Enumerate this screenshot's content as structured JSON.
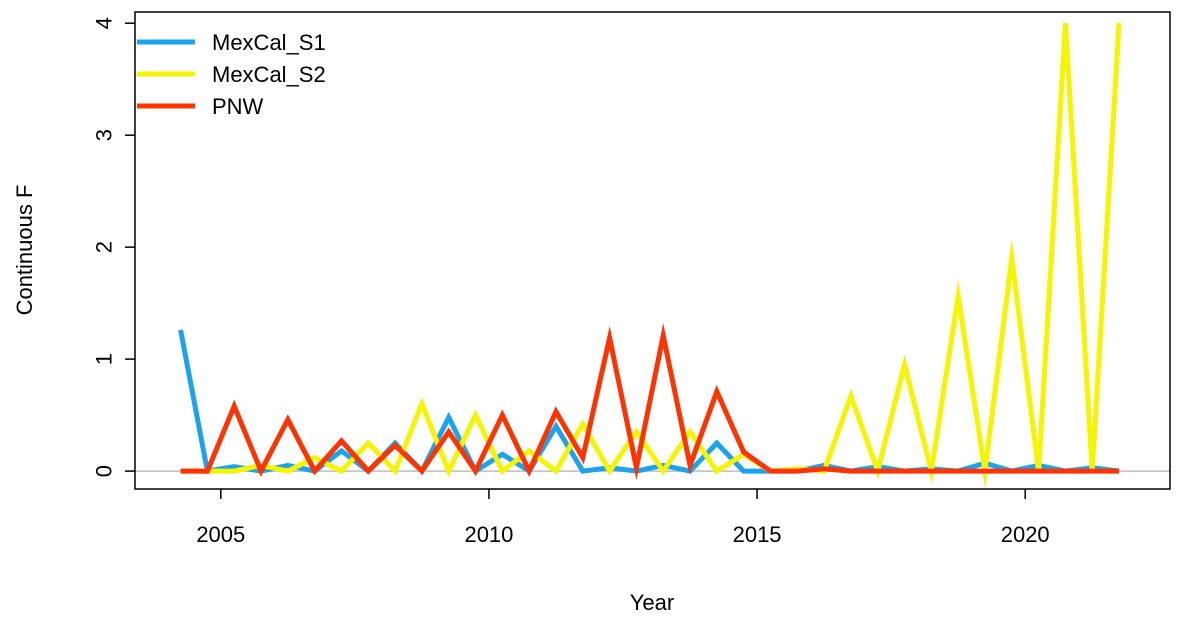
{
  "chart_data": {
    "type": "line",
    "title": "",
    "xlabel": "Year",
    "ylabel": "Continuous F",
    "xlim": [
      2003.4,
      2022.7
    ],
    "ylim": [
      -0.16,
      4.1
    ],
    "x_ticks": [
      2005,
      2010,
      2015,
      2020
    ],
    "y_ticks": [
      0,
      1,
      2,
      3,
      4
    ],
    "x_tick_labels": [
      "2005",
      "2010",
      "2015",
      "2020"
    ],
    "y_tick_labels": [
      "0",
      "1",
      "2",
      "3",
      "4"
    ],
    "reference_line": {
      "y": 0,
      "color": "#bebebe"
    },
    "legend_position": "top-left",
    "x": [
      2004.25,
      2004.75,
      2005.25,
      2005.75,
      2006.25,
      2006.75,
      2007.25,
      2007.75,
      2008.25,
      2008.75,
      2009.25,
      2009.75,
      2010.25,
      2010.75,
      2011.25,
      2011.75,
      2012.25,
      2012.75,
      2013.25,
      2013.75,
      2014.25,
      2014.75,
      2015.25,
      2015.75,
      2016.25,
      2016.75,
      2017.25,
      2017.75,
      2018.25,
      2018.75,
      2019.25,
      2019.75,
      2020.25,
      2020.75,
      2021.25,
      2021.75
    ],
    "series": [
      {
        "name": "MexCal_S1",
        "color": "#1aa3ef",
        "values": [
          1.26,
          0.0,
          0.04,
          0.0,
          0.05,
          0.0,
          0.18,
          0.0,
          0.25,
          0.0,
          0.48,
          0.0,
          0.15,
          0.0,
          0.4,
          0.0,
          0.03,
          0.0,
          0.05,
          0.0,
          0.25,
          0.0,
          0.0,
          0.0,
          0.05,
          0.0,
          0.04,
          0.0,
          0.02,
          0.0,
          0.07,
          0.0,
          0.05,
          0.0,
          0.03,
          0.0
        ]
      },
      {
        "name": "MexCal_S2",
        "color": "#f5f500",
        "values": [
          0.0,
          0.0,
          0.0,
          0.05,
          0.0,
          0.12,
          0.0,
          0.25,
          0.0,
          0.6,
          0.0,
          0.5,
          0.0,
          0.18,
          0.0,
          0.42,
          0.0,
          0.35,
          0.0,
          0.35,
          0.0,
          0.15,
          0.0,
          0.02,
          0.0,
          0.67,
          0.0,
          0.95,
          0.0,
          1.56,
          0.0,
          1.9,
          0.0,
          4.0,
          0.0,
          4.0
        ]
      },
      {
        "name": "PNW",
        "color": "#ff3300",
        "values": [
          0.0,
          0.0,
          0.58,
          0.0,
          0.46,
          0.0,
          0.27,
          0.0,
          0.23,
          0.0,
          0.35,
          0.0,
          0.5,
          0.0,
          0.53,
          0.12,
          1.19,
          0.03,
          1.21,
          0.05,
          0.71,
          0.17,
          0.0,
          0.0,
          0.02,
          0.0,
          0.0,
          0.0,
          0.0,
          0.0,
          0.0,
          0.0,
          0.0,
          0.0,
          0.0,
          0.0
        ]
      }
    ]
  }
}
